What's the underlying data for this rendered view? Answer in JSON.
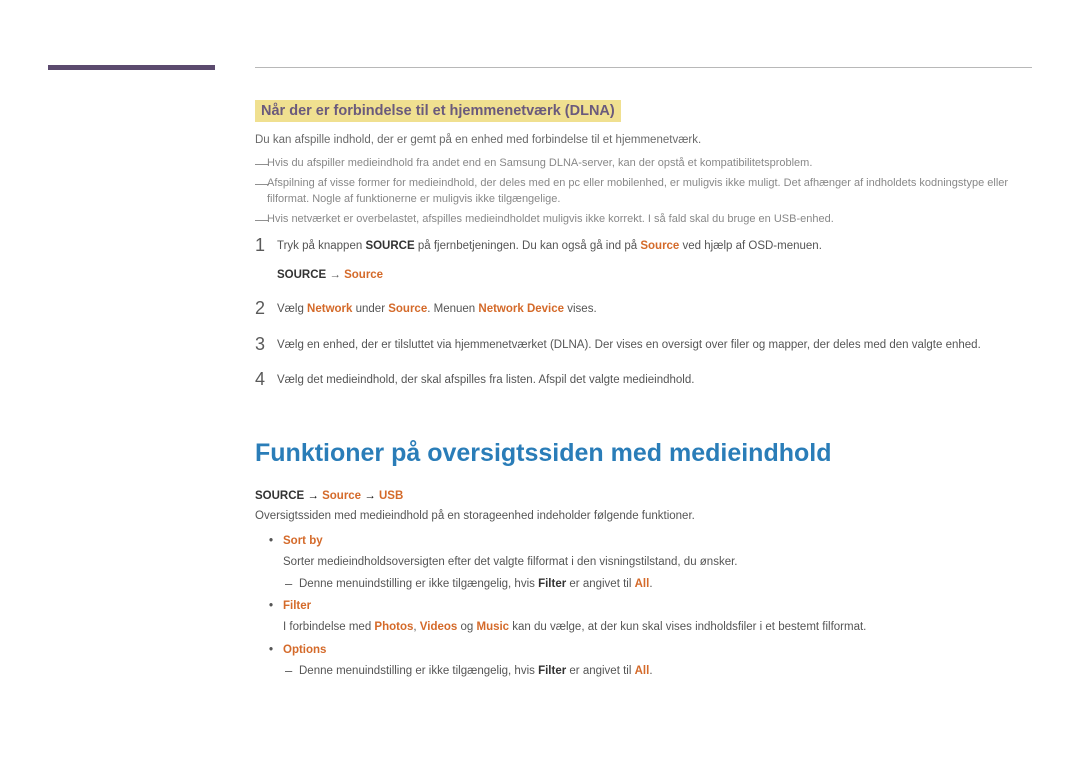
{
  "colors": {
    "accent": "#5b4a6e",
    "highlight_bg": "#f0e090",
    "heading_blue": "#2a7db8",
    "orange": "#d46a2a",
    "body_text": "#555555",
    "faint_text": "#888888"
  },
  "section1": {
    "title": "Når der er forbindelse til et hjemmenetværk (DLNA)",
    "intro": "Du kan afspille indhold, der er gemt på en enhed med forbindelse til et hjemmenetværk.",
    "notes": [
      "Hvis du afspiller medieindhold fra andet end en Samsung DLNA-server, kan der opstå et kompatibilitetsproblem.",
      "Afspilning af visse former for medieindhold, der deles med en pc eller mobilenhed, er muligvis ikke muligt. Det afhænger af indholdets kodningstype eller filformat. Nogle af funktionerne er muligvis ikke tilgængelige.",
      "Hvis netværket er overbelastet, afspilles medieindholdet muligvis ikke korrekt. I så fald skal du bruge en USB-enhed."
    ],
    "steps": {
      "s1": {
        "prefix": "Tryk på knappen ",
        "b1": "SOURCE",
        "mid1": " på fjernbetjeningen. Du kan også gå ind på ",
        "o1": "Source",
        "suffix": " ved hjælp af OSD-menuen.",
        "sub_b": "SOURCE",
        "sub_arrow": " → ",
        "sub_o": "Source"
      },
      "s2": {
        "t1": "Vælg ",
        "o1": "Network",
        "t2": " under ",
        "o2": "Source",
        "t3": ". Menuen ",
        "o3": "Network Device",
        "t4": " vises."
      },
      "s3": "Vælg en enhed, der er tilsluttet via hjemmenetværket (DLNA). Der vises en oversigt over filer og mapper, der deles med den valgte enhed.",
      "s4": "Vælg det medieindhold, der skal afspilles fra listen. Afspil det valgte medieindhold."
    }
  },
  "section2": {
    "heading": "Funktioner på oversigtssiden med medieindhold",
    "breadcrumb": {
      "b1": "SOURCE",
      "arr1": " → ",
      "o1": "Source",
      "arr2": " → ",
      "o2": "USB"
    },
    "intro": "Oversigtssiden med medieindhold på en storageenhed indeholder følgende funktioner.",
    "items": {
      "sortby": {
        "title": "Sort by",
        "desc": "Sorter medieindholdsoversigten efter det valgte filformat i den visningstilstand, du ønsker.",
        "note_pre": "Denne menuindstilling er ikke tilgængelig, hvis ",
        "note_b": "Filter",
        "note_mid": " er angivet til ",
        "note_o": "All",
        "note_suf": "."
      },
      "filter": {
        "title": "Filter",
        "desc_pre": "I forbindelse med ",
        "o1": "Photos",
        "c1": ", ",
        "o2": "Videos",
        "c2": " og ",
        "o3": "Music",
        "desc_suf": " kan du vælge, at der kun skal vises indholdsfiler i et bestemt filformat."
      },
      "options": {
        "title": "Options",
        "note_pre": "Denne menuindstilling er ikke tilgængelig, hvis ",
        "note_b": "Filter",
        "note_mid": " er angivet til ",
        "note_o": "All",
        "note_suf": "."
      }
    }
  }
}
